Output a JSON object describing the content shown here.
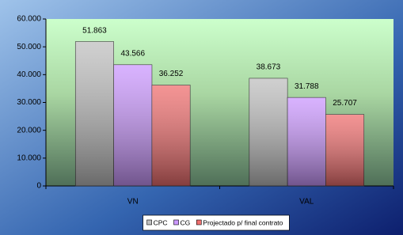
{
  "chart_data": {
    "type": "bar",
    "categories": [
      "VN",
      "VAL"
    ],
    "series": [
      {
        "name": "CPC",
        "color": "#c0c0c0",
        "values": [
          51863,
          38673
        ],
        "value_labels": [
          "51.863",
          "38.673"
        ]
      },
      {
        "name": "CG",
        "color": "#cc99ff",
        "values": [
          43566,
          31788
        ],
        "value_labels": [
          "43.566",
          "31.788"
        ]
      },
      {
        "name": "Projectado p/ final contrato",
        "color": "#f07070",
        "values": [
          36252,
          25707
        ],
        "value_labels": [
          "36.252",
          "25.707"
        ]
      }
    ],
    "ylim": [
      0,
      60000
    ],
    "yticks": [
      0,
      {
        "value": 10000,
        "label": "10.000"
      },
      {
        "value": 20000,
        "label": "20.000"
      },
      {
        "value": 30000,
        "label": "30.000"
      },
      {
        "value": 40000,
        "label": "40.000"
      },
      {
        "value": 50000,
        "label": "50.000"
      },
      {
        "value": 60000,
        "label": "60.000"
      }
    ],
    "legend": "bottom"
  }
}
